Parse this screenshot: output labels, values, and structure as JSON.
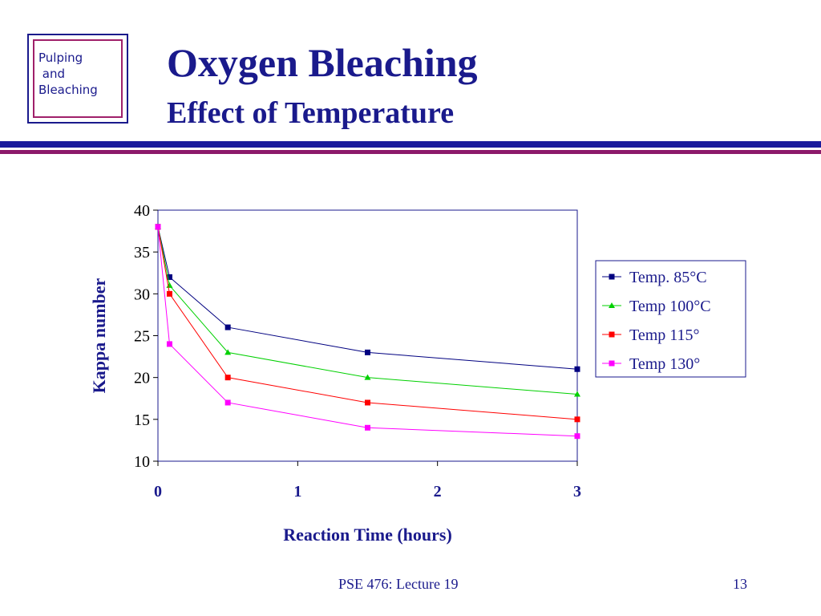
{
  "logo": {
    "lines": "Pulping\n and\nBleaching"
  },
  "slide": {
    "title": "Oxygen Bleaching",
    "subtitle": "Effect of Temperature",
    "footer": "PSE 476: Lecture 19",
    "page_number": "13"
  },
  "colors": {
    "title": "#1a1a8c",
    "rule_blue": "#1a1a9c",
    "rule_purple": "#8c1a6a"
  },
  "chart_data": {
    "type": "line",
    "xlabel": "Reaction Time (hours)",
    "ylabel": "Kappa number",
    "xlim": [
      0,
      3
    ],
    "ylim": [
      10,
      40
    ],
    "x_ticks": [
      0,
      1,
      2,
      3
    ],
    "y_ticks": [
      10,
      15,
      20,
      25,
      30,
      35,
      40
    ],
    "grid": false,
    "legend_position": "right",
    "series": [
      {
        "name": "Temp. 85°C",
        "color": "#000080",
        "marker": "square",
        "points": [
          [
            0,
            38
          ],
          [
            0.083,
            32
          ],
          [
            0.5,
            26
          ],
          [
            1.5,
            23
          ],
          [
            3,
            21
          ]
        ]
      },
      {
        "name": "Temp 100°C",
        "color": "#00d000",
        "marker": "triangle",
        "points": [
          [
            0,
            38
          ],
          [
            0.083,
            31
          ],
          [
            0.5,
            23
          ],
          [
            1.5,
            20
          ],
          [
            3,
            18
          ]
        ]
      },
      {
        "name": "Temp 115°",
        "color": "#ff0000",
        "marker": "square",
        "points": [
          [
            0,
            38
          ],
          [
            0.083,
            30
          ],
          [
            0.5,
            20
          ],
          [
            1.5,
            17
          ],
          [
            3,
            15
          ]
        ]
      },
      {
        "name": "Temp 130°",
        "color": "#ff00ff",
        "marker": "square",
        "points": [
          [
            0,
            38
          ],
          [
            0.083,
            24
          ],
          [
            0.5,
            17
          ],
          [
            1.5,
            14
          ],
          [
            3,
            13
          ]
        ]
      }
    ]
  }
}
